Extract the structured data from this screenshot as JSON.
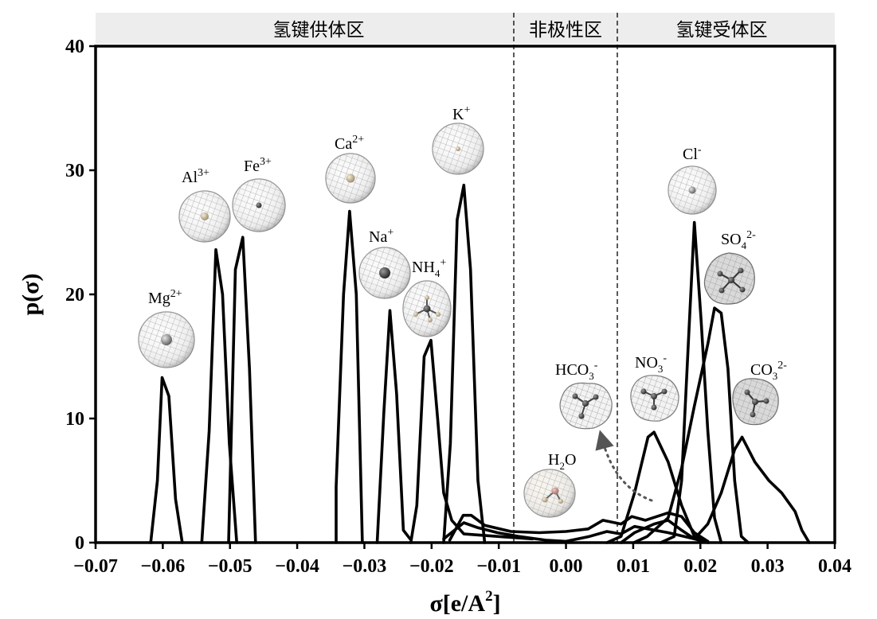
{
  "chart_data": {
    "type": "line",
    "xlabel": "σ[e/A2]",
    "xlabel_parts": {
      "main": "σ[e/A",
      "sup": "2",
      "close": "]"
    },
    "ylabel": "p(σ)",
    "xlim": [
      -0.07,
      0.04
    ],
    "ylim": [
      0,
      40
    ],
    "x_ticks": [
      "−0.07",
      "−0.06",
      "−0.05",
      "−0.04",
      "−0.03",
      "−0.02",
      "−0.01",
      "0.00",
      "0.01",
      "0.02",
      "0.03",
      "0.04"
    ],
    "x_tick_values": [
      -0.07,
      -0.06,
      -0.05,
      -0.04,
      -0.03,
      -0.02,
      -0.01,
      0.0,
      0.01,
      0.02,
      0.03,
      0.04
    ],
    "y_ticks": [
      "0",
      "10",
      "20",
      "30",
      "40"
    ],
    "y_tick_values": [
      0,
      10,
      20,
      30,
      40
    ],
    "grid": false,
    "regions": [
      {
        "label": "氢键供体区",
        "x_range": [
          -0.07,
          -0.0082
        ]
      },
      {
        "label": "非极性区",
        "x_range": [
          -0.0082,
          0.0082
        ]
      },
      {
        "label": "氢键受体区",
        "x_range": [
          0.0082,
          0.04
        ]
      }
    ],
    "region_separators": [
      -0.0082,
      0.0082
    ],
    "series": [
      {
        "name": "Mg2+",
        "label": {
          "base": "Mg",
          "sup": "2+"
        },
        "points": [
          [
            -0.0618,
            0
          ],
          [
            -0.0608,
            5
          ],
          [
            -0.0601,
            13.3
          ],
          [
            -0.0591,
            11.8
          ],
          [
            -0.0581,
            3.5
          ],
          [
            -0.0571,
            0
          ]
        ]
      },
      {
        "name": "Al3+",
        "label": {
          "base": "Al",
          "sup": "3+"
        },
        "points": [
          [
            -0.0542,
            0
          ],
          [
            -0.0531,
            9
          ],
          [
            -0.0521,
            23.6
          ],
          [
            -0.0511,
            20
          ],
          [
            -0.0501,
            8
          ],
          [
            -0.049,
            0
          ]
        ]
      },
      {
        "name": "Fe3+",
        "label": {
          "base": "Fe",
          "sup": "3+"
        },
        "points": [
          [
            -0.0502,
            0
          ],
          [
            -0.0492,
            22
          ],
          [
            -0.0481,
            24.6
          ],
          [
            -0.0471,
            14
          ],
          [
            -0.0462,
            0
          ]
        ]
      },
      {
        "name": "Ca2+",
        "label": {
          "base": "Ca",
          "sup": "2+"
        },
        "points": [
          [
            -0.0342,
            0
          ],
          [
            -0.0342,
            4.5
          ],
          [
            -0.0331,
            20
          ],
          [
            -0.0322,
            26.7
          ],
          [
            -0.0312,
            20
          ],
          [
            -0.0303,
            0
          ]
        ]
      },
      {
        "name": "Na+",
        "label": {
          "base": "Na",
          "sup": "+"
        },
        "points": [
          [
            -0.0281,
            0
          ],
          [
            -0.0271,
            10.5
          ],
          [
            -0.0262,
            18.7
          ],
          [
            -0.0252,
            12
          ],
          [
            -0.0242,
            1
          ],
          [
            -0.0232,
            0.3
          ]
        ]
      },
      {
        "name": "NH4+",
        "label": {
          "base": "NH",
          "sub": "4",
          "sup": "+"
        },
        "points": [
          [
            -0.0231,
            0
          ],
          [
            -0.0222,
            3
          ],
          [
            -0.0211,
            15
          ],
          [
            -0.0201,
            16.3
          ],
          [
            -0.0191,
            10
          ],
          [
            -0.0182,
            4
          ],
          [
            -0.017,
            1.8
          ],
          [
            -0.0152,
            0.7
          ],
          [
            -0.0102,
            0.5
          ],
          [
            -0.005,
            0.3
          ]
        ]
      },
      {
        "name": "K+",
        "label": {
          "base": "K",
          "sup": "+"
        },
        "points": [
          [
            -0.0182,
            0
          ],
          [
            -0.0172,
            8
          ],
          [
            -0.0162,
            26
          ],
          [
            -0.0152,
            28.8
          ],
          [
            -0.0142,
            22
          ],
          [
            -0.0131,
            5
          ],
          [
            -0.0121,
            0
          ]
        ]
      },
      {
        "name": "H2O",
        "label": {
          "base": "H",
          "sub": "2",
          "after": "O"
        },
        "points": [
          [
            -0.0173,
            0.2
          ],
          [
            -0.0153,
            2.2
          ],
          [
            -0.0141,
            2.2
          ],
          [
            -0.0121,
            1.4
          ],
          [
            -0.0082,
            0.9
          ],
          [
            -0.004,
            0.8
          ],
          [
            0.0,
            0.9
          ],
          [
            0.0033,
            1.1
          ],
          [
            0.0055,
            1.8
          ],
          [
            0.0082,
            1.5
          ],
          [
            0.0098,
            2.1
          ],
          [
            0.0118,
            1.8
          ],
          [
            0.0152,
            2.4
          ],
          [
            0.0172,
            2.1
          ],
          [
            0.0191,
            0.8
          ],
          [
            0.0211,
            0.1
          ]
        ]
      },
      {
        "name": "HCO3-",
        "label": {
          "base": "HCO",
          "sub": "3",
          "sup": "-"
        },
        "points": [
          [
            -0.0182,
            0.3
          ],
          [
            -0.0152,
            1.6
          ],
          [
            -0.0131,
            1.2
          ],
          [
            -0.0102,
            0.8
          ],
          [
            -0.0071,
            0.5
          ],
          [
            -0.003,
            0.2
          ],
          [
            0.0,
            0.1
          ],
          [
            0.0035,
            0.5
          ],
          [
            0.0061,
            0.9
          ],
          [
            0.0082,
            0.7
          ],
          [
            0.0102,
            1.3
          ],
          [
            0.0152,
            0.8
          ],
          [
            0.0191,
            0.3
          ],
          [
            0.0211,
            0
          ]
        ]
      },
      {
        "name": "NO3-",
        "label": {
          "base": "NO",
          "sub": "3",
          "sup": "-"
        },
        "points": [
          [
            0.0061,
            0
          ],
          [
            0.0082,
            0.5
          ],
          [
            0.0102,
            4
          ],
          [
            0.0122,
            8.5
          ],
          [
            0.0131,
            8.9
          ],
          [
            0.0152,
            6.5
          ],
          [
            0.0172,
            3
          ],
          [
            0.0191,
            0.5
          ],
          [
            0.0211,
            0
          ]
        ]
      },
      {
        "name": "Cl-",
        "label": {
          "base": "Cl",
          "sup": "-"
        },
        "points": [
          [
            0.0141,
            0
          ],
          [
            0.0161,
            0.5
          ],
          [
            0.0172,
            5
          ],
          [
            0.0182,
            16
          ],
          [
            0.0191,
            25.8
          ],
          [
            0.0201,
            18
          ],
          [
            0.0211,
            9
          ],
          [
            0.0221,
            2
          ],
          [
            0.0231,
            0
          ]
        ]
      },
      {
        "name": "SO42-",
        "label": {
          "base": "SO",
          "sub": "4",
          "sup": "2-"
        },
        "points": [
          [
            0.0101,
            0
          ],
          [
            0.0121,
            0.5
          ],
          [
            0.0152,
            2
          ],
          [
            0.0172,
            6
          ],
          [
            0.0191,
            11
          ],
          [
            0.0211,
            16
          ],
          [
            0.0221,
            18.9
          ],
          [
            0.0231,
            18.5
          ],
          [
            0.0241,
            14
          ],
          [
            0.0251,
            5
          ],
          [
            0.0261,
            0.5
          ],
          [
            0.0271,
            0
          ]
        ]
      },
      {
        "name": "CO32-",
        "label": {
          "base": "CO",
          "sub": "3",
          "sup": "2-"
        },
        "points": [
          [
            0.0082,
            0
          ],
          [
            0.0102,
            0.8
          ],
          [
            0.0131,
            1.5
          ],
          [
            0.0152,
            1.8
          ],
          [
            0.0172,
            1
          ],
          [
            0.0191,
            0.3
          ],
          [
            0.0211,
            1.5
          ],
          [
            0.0231,
            4
          ],
          [
            0.0251,
            7.5
          ],
          [
            0.0262,
            8.5
          ],
          [
            0.0281,
            6.5
          ],
          [
            0.0302,
            5
          ],
          [
            0.0321,
            4
          ],
          [
            0.0341,
            2.5
          ],
          [
            0.0351,
            1
          ],
          [
            0.0362,
            0
          ]
        ]
      }
    ]
  }
}
